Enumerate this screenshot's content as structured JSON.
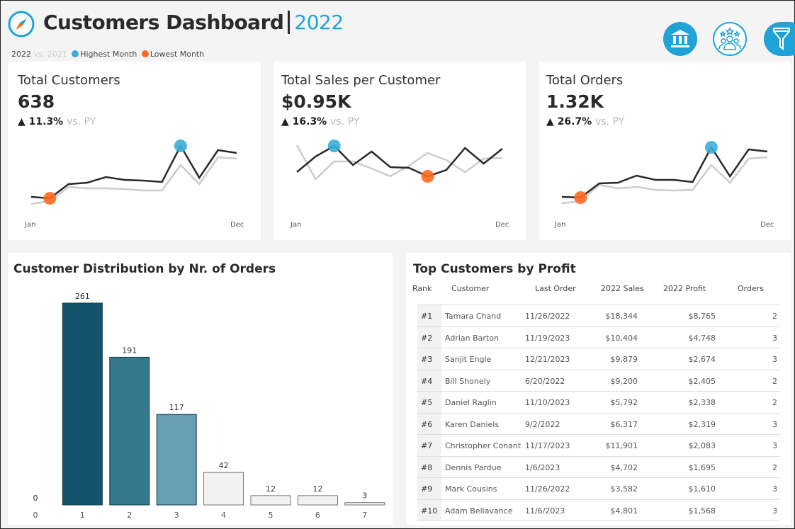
{
  "header": {
    "title": "Customers Dashboard",
    "separator": "|",
    "year": "2022",
    "legend": {
      "current": "2022",
      "vs": "vs. 2021",
      "highest": "Highest Month",
      "lowest": "Lowest Month"
    },
    "icons": [
      "bank-icon",
      "customers-stars-icon",
      "filter-icon"
    ]
  },
  "colors": {
    "accent": "#1fa3d6",
    "highest": "#3aaed8",
    "lowest": "#ff6a1f",
    "current_line": "#2a2a2a",
    "prior_line": "#cccccc"
  },
  "kpis": [
    {
      "title": "Total Customers",
      "value": "638",
      "delta": "▲ 11.3%",
      "vs": "vs. PY"
    },
    {
      "title": "Total Sales per Customer",
      "value": "$0.95K",
      "delta": "▲ 16.3%",
      "vs": "vs. PY"
    },
    {
      "title": "Total Orders",
      "value": "1.32K",
      "delta": "▲ 26.7%",
      "vs": "vs. PY"
    }
  ],
  "chart_data": [
    {
      "type": "line",
      "x_start": "Jan",
      "x_end": "Dec",
      "note_units": "relative",
      "series": [
        {
          "values": [
            13,
            11,
            31,
            33,
            41,
            37,
            36,
            34,
            85,
            40,
            79,
            75
          ]
        },
        {
          "values": [
            3,
            7,
            27,
            25,
            25,
            24,
            22,
            22,
            58,
            31,
            69,
            67
          ]
        }
      ],
      "highest_index": 8,
      "lowest_index": 1
    },
    {
      "type": "line",
      "x_start": "Jan",
      "x_end": "Dec",
      "series": [
        {
          "values": [
            48,
            70,
            85,
            58,
            77,
            55,
            54,
            42,
            51,
            82,
            60,
            81
          ]
        },
        {
          "values": [
            86,
            38,
            63,
            63,
            53,
            42,
            57,
            75,
            65,
            48,
            67,
            68
          ]
        }
      ],
      "highest_index": 2,
      "lowest_index": 7
    },
    {
      "type": "line",
      "x_start": "Jan",
      "x_end": "Dec",
      "series": [
        {
          "values": [
            13,
            12,
            32,
            33,
            43,
            37,
            37,
            34,
            83,
            42,
            80,
            77
          ]
        },
        {
          "values": [
            4,
            7,
            30,
            25,
            27,
            23,
            22,
            23,
            58,
            33,
            67,
            69
          ]
        }
      ],
      "highest_index": 8,
      "lowest_index": 1
    },
    {
      "type": "bar",
      "title": "Customer Distribution by Nr. of Orders",
      "categories": [
        "0",
        "1",
        "2",
        "3",
        "4",
        "5",
        "6",
        "7"
      ],
      "values": [
        0,
        261,
        191,
        117,
        42,
        12,
        12,
        3
      ],
      "colors": [
        "#14546b",
        "#14546b",
        "#34788c",
        "#659fb1",
        "#f2f2f2",
        "#f2f2f2",
        "#f2f2f2",
        "#f2f2f2"
      ]
    }
  ],
  "table": {
    "title": "Top Customers by Profit",
    "headers": [
      "Rank",
      "Customer",
      "Last Order",
      "2022 Sales",
      "2022 Profit",
      "Orders"
    ],
    "rows": [
      [
        "#1",
        "Tamara Chand",
        "11/26/2022",
        "$18,344",
        "$8,765",
        "2"
      ],
      [
        "#2",
        "Adrian Barton",
        "11/19/2023",
        "$10,404",
        "$4,748",
        "3"
      ],
      [
        "#3",
        "Sanjit Engle",
        "12/21/2023",
        "$9,879",
        "$2,674",
        "3"
      ],
      [
        "#4",
        "Bill Shonely",
        "6/20/2022",
        "$9,200",
        "$2,405",
        "2"
      ],
      [
        "#5",
        "Daniel Raglin",
        "11/10/2023",
        "$5,792",
        "$2,338",
        "2"
      ],
      [
        "#6",
        "Karen Daniels",
        "9/2/2022",
        "$6,317",
        "$2,319",
        "3"
      ],
      [
        "#7",
        "Christopher Conant",
        "11/17/2023",
        "$11,901",
        "$2,083",
        "3"
      ],
      [
        "#8",
        "Dennis Pardue",
        "1/6/2023",
        "$4,702",
        "$1,695",
        "2"
      ],
      [
        "#9",
        "Mark Cousins",
        "11/26/2022",
        "$3,582",
        "$1,610",
        "3"
      ],
      [
        "#10",
        "Adam Bellavance",
        "11/6/2023",
        "$4,801",
        "$1,568",
        "3"
      ]
    ]
  }
}
